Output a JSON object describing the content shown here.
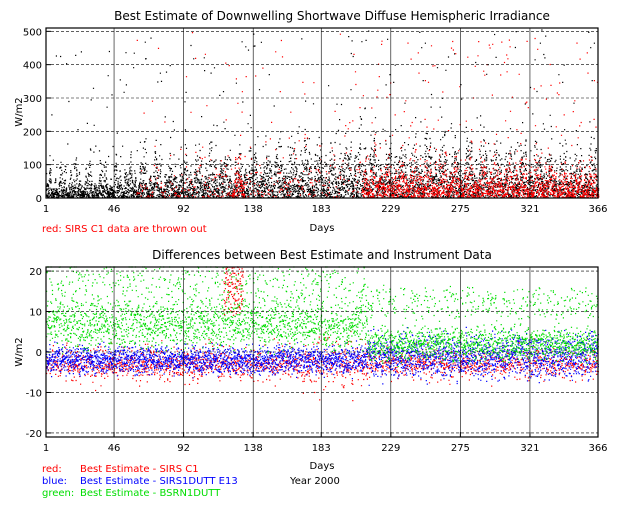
{
  "chart_data": [
    {
      "type": "scatter",
      "title": "Best Estimate of Downwelling Shortwave Diffuse Hemispheric Irradiance",
      "xlabel": "Days",
      "ylabel": "W/m2",
      "xlim": [
        1,
        366
      ],
      "ylim": [
        0,
        510
      ],
      "x_ticks": [
        1,
        46,
        92,
        138,
        183,
        229,
        275,
        321,
        366
      ],
      "x_tick_labels": [
        "1",
        "46",
        "92",
        "138",
        "183",
        "229",
        "275",
        "321",
        "366"
      ],
      "y_ticks": [
        0,
        100,
        200,
        300,
        400,
        500
      ],
      "y_tick_labels": [
        "0",
        "100",
        "200",
        "300",
        "400",
        "500"
      ],
      "grid": true,
      "note": "red: SIRS C1 data are thrown out",
      "series": [
        {
          "name": "black",
          "color": "#000000"
        },
        {
          "name": "red",
          "color": "#ff0000"
        }
      ]
    },
    {
      "type": "scatter",
      "title": "Differences between Best Estimate and Instrument Data",
      "xlabel": "Days",
      "ylabel": "W/m2",
      "xlim": [
        1,
        366
      ],
      "ylim": [
        -21,
        21
      ],
      "x_ticks": [
        1,
        46,
        92,
        138,
        183,
        229,
        275,
        321,
        366
      ],
      "x_tick_labels": [
        "1",
        "46",
        "92",
        "138",
        "183",
        "229",
        "275",
        "321",
        "366"
      ],
      "y_ticks": [
        -20,
        -10,
        0,
        10,
        20
      ],
      "y_tick_labels": [
        "-20",
        "-10",
        "0",
        "10",
        "20"
      ],
      "grid": true,
      "series": [
        {
          "name": "Best Estimate - SIRS C1",
          "color": "#ff0000"
        },
        {
          "name": "Best Estimate - SIRS1DUTT E13",
          "color": "#0000ff"
        },
        {
          "name": "Best Estimate - BSRN1DUTT",
          "color": "#00dd00"
        }
      ],
      "legend": [
        {
          "prefix": "red:",
          "text": "Best Estimate - SIRS C1",
          "color": "#ff0000"
        },
        {
          "prefix": "blue:",
          "text": "Best Estimate - SIRS1DUTT E13",
          "color": "#0000ff"
        },
        {
          "prefix": "green:",
          "text": "Best Estimate - BSRN1DUTT",
          "color": "#00dd00"
        }
      ],
      "year_label": "Year 2000"
    }
  ]
}
